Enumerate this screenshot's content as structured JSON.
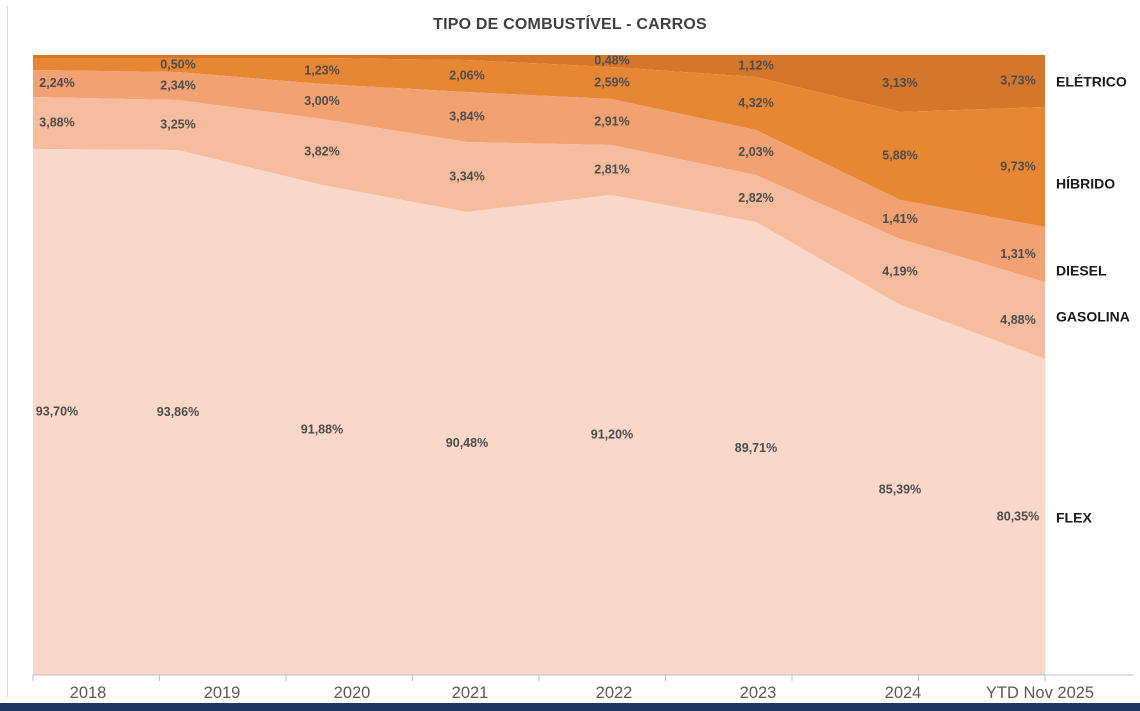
{
  "title": "TIPO DE COMBUSTÍVEL - CARROS",
  "footer": {
    "accent_color": "#1F3864"
  },
  "chart_data": {
    "type": "area",
    "variant": "100%-stacked",
    "unit": "%",
    "title": "TIPO DE COMBUSTÍVEL - CARROS",
    "xlabel": "",
    "ylabel": "",
    "grid": false,
    "legend_position": "right-edge-labels",
    "categories": [
      "2018",
      "2019",
      "2020",
      "2021",
      "2022",
      "2023",
      "2024",
      "YTD Nov 2025"
    ],
    "series": [
      {
        "name": "ELÉTRICO",
        "color": "#D4772B",
        "values": [
          null,
          null,
          null,
          null,
          0.48,
          1.12,
          3.13,
          3.73
        ],
        "labels": [
          "",
          "",
          "",
          "",
          "0,48%",
          "1,12%",
          "3,13%",
          "3,73%"
        ]
      },
      {
        "name": "HÍBRIDO",
        "color": "#E88733",
        "values": [
          null,
          0.5,
          1.23,
          2.06,
          2.59,
          4.32,
          5.88,
          9.73
        ],
        "labels": [
          "",
          "0,50%",
          "1,23%",
          "2,06%",
          "2,59%",
          "4,32%",
          "5,88%",
          "9,73%"
        ]
      },
      {
        "name": "DIESEL",
        "color": "#F2A173",
        "values": [
          2.24,
          2.34,
          3.0,
          3.84,
          2.91,
          2.03,
          1.41,
          1.31
        ],
        "labels": [
          "2,24%",
          "2,34%",
          "3,00%",
          "3,84%",
          "2,91%",
          "2,03%",
          "1,41%",
          "1,31%"
        ]
      },
      {
        "name": "GASOLINA",
        "color": "#F5BD9E",
        "values": [
          3.88,
          3.25,
          3.82,
          3.34,
          2.81,
          2.82,
          4.19,
          4.88
        ],
        "labels": [
          "3,88%",
          "3,25%",
          "3,82%",
          "3,34%",
          "2,81%",
          "2,82%",
          "4,19%",
          "4,88%"
        ]
      },
      {
        "name": "FLEX",
        "color": "#F9D7C9",
        "values": [
          93.7,
          93.86,
          91.88,
          90.48,
          91.2,
          89.71,
          85.39,
          80.35
        ],
        "labels": [
          "93,70%",
          "93,86%",
          "91,88%",
          "90,48%",
          "91,20%",
          "89,71%",
          "85,39%",
          "80,35%"
        ]
      }
    ],
    "label_color": "#4d4d4d",
    "series_name_color": "#1a1a1a",
    "axis_label_color": "#595959"
  }
}
